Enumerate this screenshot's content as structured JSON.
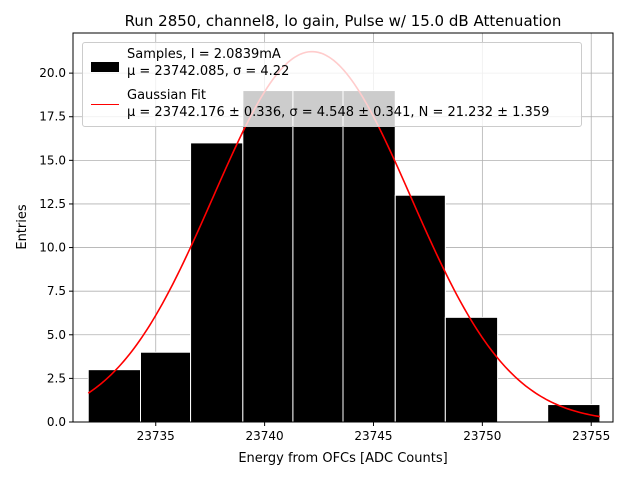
{
  "chart_data": {
    "type": "bar",
    "title": "Run 2850, channel8, lo gain, Pulse w/ 15.0 dB Attenuation",
    "xlabel": "Energy from OFCs [ADC Counts]",
    "ylabel": "Entries",
    "xlim": [
      23731.2,
      23756.0
    ],
    "ylim": [
      0,
      22.3
    ],
    "xticks": [
      23735,
      23740,
      23745,
      23750,
      23755
    ],
    "xtick_labels": [
      "23735",
      "23740",
      "23745",
      "23750",
      "23755"
    ],
    "yticks": [
      0,
      2.5,
      5,
      7.5,
      10,
      12.5,
      15,
      17.5,
      20
    ],
    "ytick_labels": [
      "0.0",
      "2.5",
      "5.0",
      "7.5",
      "10.0",
      "12.5",
      "15.0",
      "17.5",
      "20.0"
    ],
    "grid": true,
    "legend_position": "top",
    "bins": [
      {
        "x0": 23731.9,
        "x1": 23734.3,
        "count": 3
      },
      {
        "x0": 23734.3,
        "x1": 23736.6,
        "count": 4
      },
      {
        "x0": 23736.6,
        "x1": 23739.0,
        "count": 16
      },
      {
        "x0": 23739.0,
        "x1": 23741.3,
        "count": 19
      },
      {
        "x0": 23741.3,
        "x1": 23743.6,
        "count": 19
      },
      {
        "x0": 23743.6,
        "x1": 23746.0,
        "count": 19
      },
      {
        "x0": 23746.0,
        "x1": 23748.3,
        "count": 13
      },
      {
        "x0": 23748.3,
        "x1": 23750.7,
        "count": 6
      },
      {
        "x0": 23750.7,
        "x1": 23753.0,
        "count": 0
      },
      {
        "x0": 23753.0,
        "x1": 23755.4,
        "count": 1
      }
    ],
    "series": [
      {
        "name": "Samples, I = 2.0839mA",
        "name_line2": "μ = 23742.085, σ = 4.22",
        "color": "#000000"
      },
      {
        "name": "Gaussian Fit",
        "name_line2": "μ = 23742.176 ± 0.336, σ = 4.548 ± 0.341, N = 21.232 ± 1.359",
        "color": "#ff0000",
        "fit": {
          "mu": 23742.176,
          "sigma": 4.548,
          "N": 21.232
        }
      }
    ]
  }
}
